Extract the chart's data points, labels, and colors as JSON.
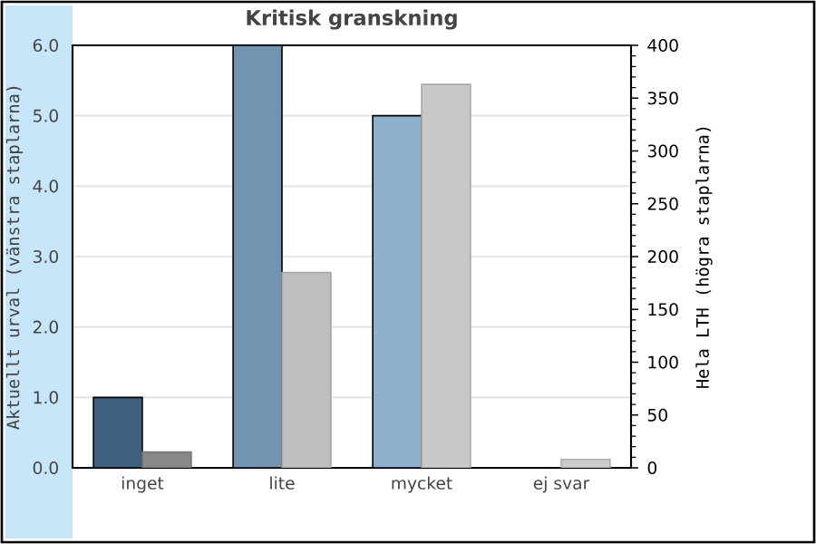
{
  "chart_data": {
    "type": "bar",
    "title": "Kritisk granskning",
    "categories": [
      "inget",
      "lite",
      "mycket",
      "ej svar"
    ],
    "ylabel": "Aktuellt urval (vänstra staplarna)",
    "y2label": "Hela LTH (högra staplarna)",
    "ylim": [
      0,
      6
    ],
    "yticks": [
      {
        "value": 0,
        "label": "0.0"
      },
      {
        "value": 1,
        "label": "1.0"
      },
      {
        "value": 2,
        "label": "2.0"
      },
      {
        "value": 3,
        "label": "3.0"
      },
      {
        "value": 4,
        "label": "4.0"
      },
      {
        "value": 5,
        "label": "5.0"
      },
      {
        "value": 6,
        "label": "6.0"
      }
    ],
    "y2lim": [
      0,
      400
    ],
    "y2ticks": [
      0,
      50,
      100,
      150,
      200,
      250,
      300,
      350,
      400
    ],
    "grid": "y",
    "series": [
      {
        "colors": [
          "#3e5f7d",
          "#7294b0",
          "#8eb0cc",
          "#8eb0cc"
        ],
        "values": [
          1,
          6,
          5,
          0
        ]
      },
      {
        "axis": "y2",
        "colors": [
          "#888888",
          "#bebebe",
          "#c8c8c8",
          "#cccccc"
        ],
        "values": [
          15,
          185,
          363,
          8
        ]
      }
    ]
  }
}
